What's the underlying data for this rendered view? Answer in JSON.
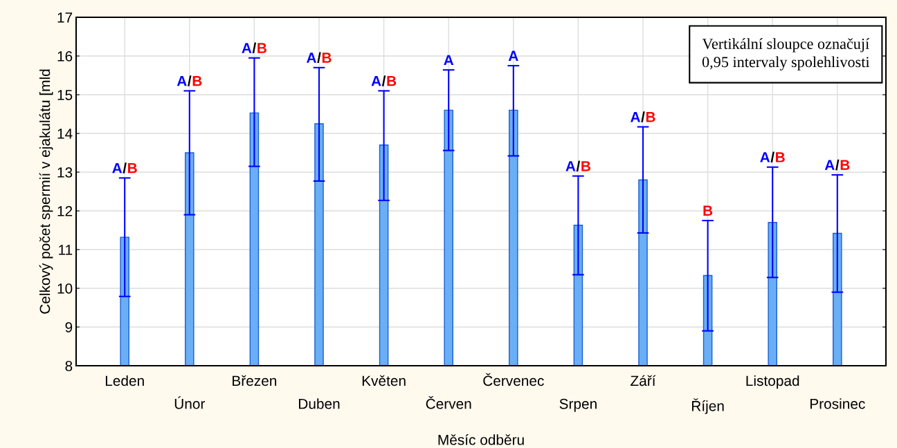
{
  "chart_data": {
    "type": "bar",
    "categories": [
      "Leden",
      "Únor",
      "Březen",
      "Duben",
      "Květen",
      "Červen",
      "Červenec",
      "Srpen",
      "Září",
      "Říjen",
      "Listopad",
      "Prosinec"
    ],
    "values": [
      11.32,
      13.5,
      14.53,
      14.25,
      13.7,
      14.6,
      14.6,
      11.63,
      12.8,
      10.33,
      11.7,
      11.42
    ],
    "errors": [
      [
        9.79,
        12.85
      ],
      [
        11.9,
        15.1
      ],
      [
        13.15,
        15.95
      ],
      [
        12.77,
        15.7
      ],
      [
        12.27,
        15.1
      ],
      [
        13.56,
        15.64
      ],
      [
        13.42,
        15.75
      ],
      [
        10.35,
        12.9
      ],
      [
        11.43,
        14.17
      ],
      [
        8.9,
        11.75
      ],
      [
        10.28,
        13.13
      ],
      [
        9.9,
        12.93
      ]
    ],
    "color": "#6aaef5",
    "xlabel": "Měsíc odběru",
    "ylabel": "Celkový počet spermií v ejakulátu [mld",
    "ylim": [
      8,
      17
    ],
    "yticks": [
      8,
      9,
      10,
      11,
      12,
      13,
      14,
      15,
      16,
      17
    ],
    "grid": true,
    "annotations": [
      {
        "text": "A/B",
        "x": "Leden",
        "y": 12.85
      },
      {
        "text": "A/B",
        "x": "Únor",
        "y": 15.1
      },
      {
        "text": "A/B",
        "x": "Březen",
        "y": 15.95
      },
      {
        "text": "A/B",
        "x": "Duben",
        "y": 15.7
      },
      {
        "text": "A/B",
        "x": "Květen",
        "y": 15.1
      },
      {
        "text": "A",
        "x": "Červen",
        "y": 15.64
      },
      {
        "text": "A",
        "x": "Červenec",
        "y": 15.75
      },
      {
        "text": "A/B",
        "x": "Srpen",
        "y": 12.9
      },
      {
        "text": "A/B",
        "x": "Září",
        "y": 14.17
      },
      {
        "text": "B",
        "x": "Říjen",
        "y": 11.75
      },
      {
        "text": "A/B",
        "x": "Listopad",
        "y": 13.13
      },
      {
        "text": "A/B",
        "x": "Prosinec",
        "y": 12.93
      },
      "Vertikální sloupce označují\n0,95 intervaly spolehlivosti"
    ]
  }
}
